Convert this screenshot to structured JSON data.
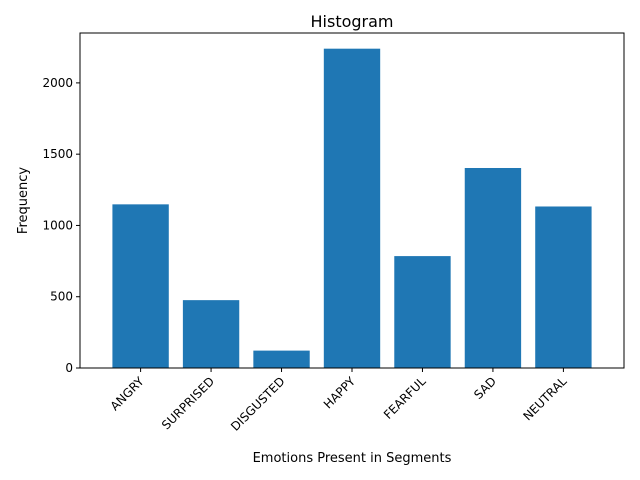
{
  "chart_data": {
    "type": "bar",
    "title": "Histogram",
    "xlabel": "Emotions Present in Segments",
    "ylabel": "Frequency",
    "categories": [
      "ANGRY",
      "SURPRISED",
      "DISGUSTED",
      "HAPPY",
      "FEARFUL",
      "SAD",
      "NEUTRAL"
    ],
    "values": [
      1148,
      476,
      122,
      2240,
      785,
      1403,
      1133
    ],
    "ylim": [
      0,
      2350
    ],
    "yticks": [
      0,
      500,
      1000,
      1500,
      2000
    ],
    "bar_color": "#1f77b4",
    "grid": false,
    "legend": "none",
    "xtick_rotation": 45
  }
}
